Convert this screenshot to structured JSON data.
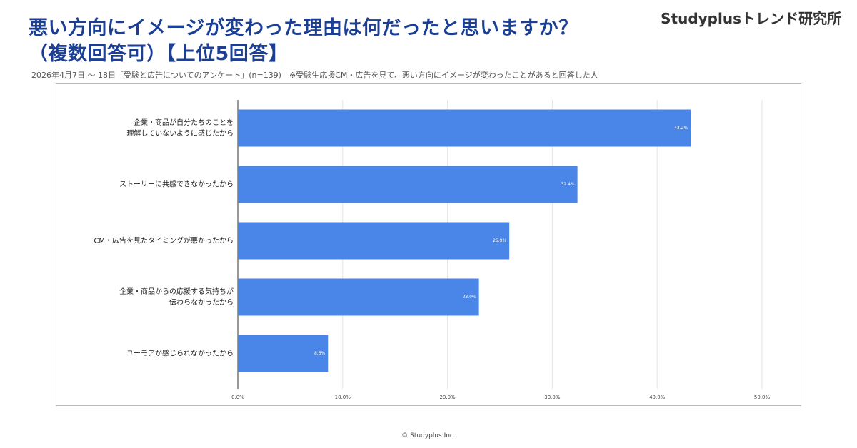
{
  "header": {
    "brand": "Studyplusトレンド研究所"
  },
  "footer": "© Studyplus Inc.",
  "chart_data": {
    "type": "bar",
    "orientation": "horizontal",
    "title": "悪い方向にイメージが変わった理由は何だったと思いますか？\n（複数回答可）【上位5回答】",
    "note": "2026年4月7日 ～ 18日「受験と広告についてのアンケート」(n=139)　※受験生応援CM・広告を見て、悪い方向にイメージが変わったことがあると回答した人",
    "categories": [
      "企業・商品が自分たちのことを\n理解していないように感じたから",
      "ストーリーに共感できなかったから",
      "CM・広告を見たタイミングが悪かったから",
      "企業・商品からの応援する気持ちが\n伝わらなかったから",
      "ユーモアが感じられなかったから"
    ],
    "values": [
      43.2,
      32.4,
      25.9,
      23.0,
      8.6
    ],
    "value_labels": [
      "43.2%",
      "32.4%",
      "25.9%",
      "23.0%",
      "8.6%"
    ],
    "color": "#4a86e8",
    "xlim": [
      0,
      50
    ],
    "xticks": [
      {
        "value": 0,
        "label": "0.0%"
      },
      {
        "value": 10,
        "label": "10.0%"
      },
      {
        "value": 20,
        "label": "20.0%"
      },
      {
        "value": 30,
        "label": "30.0%"
      },
      {
        "value": 40,
        "label": "40.0%"
      },
      {
        "value": 50,
        "label": "50.0%"
      }
    ],
    "grid": true
  }
}
